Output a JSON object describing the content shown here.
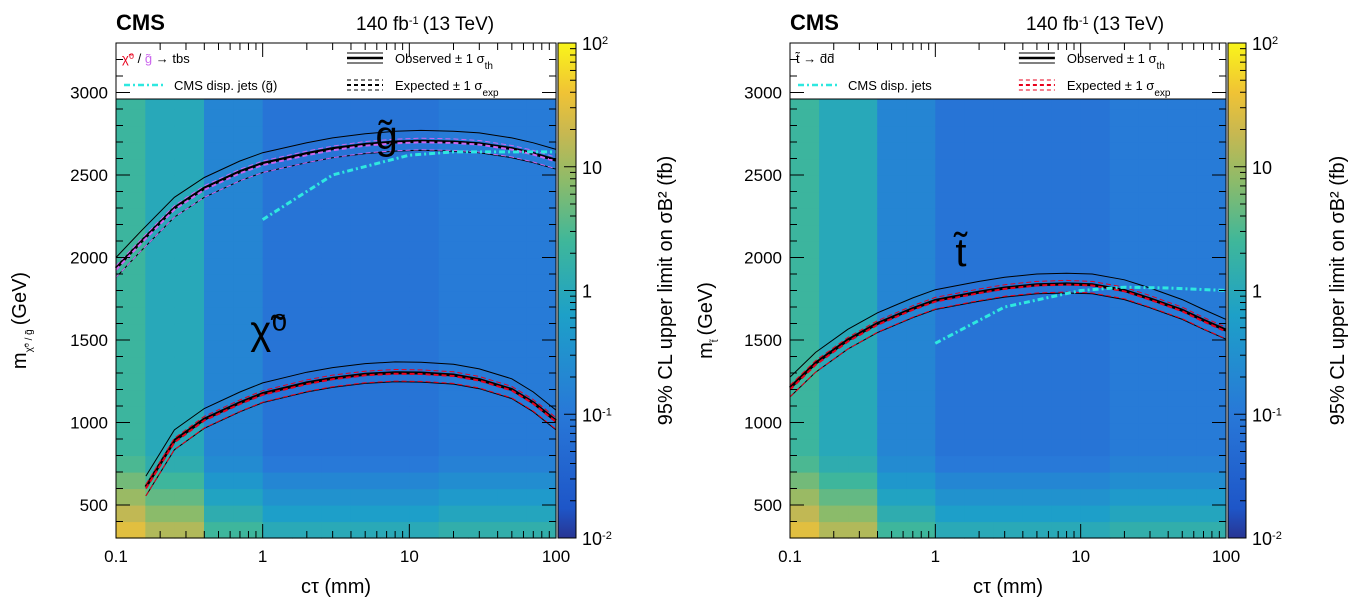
{
  "chart_data": [
    {
      "type": "heatmap",
      "experiment": "CMS",
      "luminosity": "140 fb",
      "luminosity_exp": "-1",
      "energy": "(13 TeV)",
      "xlabel": "cτ (mm)",
      "xscale": "log",
      "xlim": [
        0.1,
        100
      ],
      "xticks": [
        "0.1",
        "1",
        "10",
        "100"
      ],
      "ylabel": "m",
      "ylabel_sub": "χ̃⁰ / g̃",
      "ylabel_unit": "(GeV)",
      "ylim": [
        300,
        3300
      ],
      "yticks": [
        500,
        1000,
        1500,
        2000,
        2500,
        3000
      ],
      "zlabel": "95% CL upper limit on σB² (fb)",
      "zscale": "log",
      "zlim": [
        0.01,
        100
      ],
      "zticks": [
        {
          "base": "10",
          "exp": "-2",
          "v": 0.01
        },
        {
          "base": "10",
          "exp": "-1",
          "v": 0.1
        },
        {
          "base": "1",
          "exp": "",
          "v": 1
        },
        {
          "base": "10",
          "exp": "",
          "v": 10
        },
        {
          "base": "10",
          "exp": "2",
          "v": 100
        }
      ],
      "legend": {
        "process_parts": [
          {
            "text": "χ̃⁰",
            "color": "#e8001c"
          },
          {
            "text": " / ",
            "color": "#000000"
          },
          {
            "text": "g̃",
            "color": "#cc66ee"
          },
          {
            "text": " → tbs",
            "color": "#000000"
          }
        ],
        "observed": "Observed ± 1 σ",
        "observed_sub": "th",
        "expected": "Expected ± 1 σ",
        "expected_sub": "exp",
        "other": "CMS disp. jets (g̃)",
        "expected_color": "#000000"
      },
      "curve_labels": [
        {
          "text": "g̃",
          "color": "#cc66ee",
          "x": 7,
          "y": 2660
        },
        {
          "text": "χ̃⁰",
          "color": "#e8001c",
          "x": 1.1,
          "y": 1480
        }
      ],
      "series": [
        {
          "name": "g̃ observed",
          "style": "observed",
          "x": [
            0.1,
            0.15,
            0.25,
            0.4,
            0.7,
            1,
            2,
            3,
            5,
            8,
            12,
            20,
            30,
            50,
            70,
            100
          ],
          "y": [
            1935,
            2100,
            2300,
            2420,
            2520,
            2570,
            2630,
            2660,
            2685,
            2700,
            2705,
            2700,
            2690,
            2660,
            2630,
            2590
          ]
        },
        {
          "name": "g̃ expected",
          "style": "expected",
          "color": "#cc66ee",
          "x": [
            0.1,
            0.15,
            0.25,
            0.4,
            0.7,
            1,
            2,
            3,
            5,
            8,
            12,
            20,
            30,
            50,
            70,
            100
          ],
          "y": [
            1925,
            2090,
            2290,
            2410,
            2510,
            2560,
            2620,
            2650,
            2678,
            2692,
            2698,
            2694,
            2684,
            2654,
            2624,
            2582
          ]
        },
        {
          "name": "g̃ CMS disp. jets",
          "style": "other",
          "x": [
            1,
            3,
            10,
            20,
            40,
            100
          ],
          "y": [
            2230,
            2500,
            2620,
            2640,
            2640,
            2640
          ]
        },
        {
          "name": "χ̃⁰ observed",
          "style": "observed",
          "x": [
            0.16,
            0.25,
            0.4,
            0.7,
            1,
            2,
            3,
            5,
            8,
            12,
            20,
            30,
            50,
            70,
            100
          ],
          "y": [
            610,
            890,
            1020,
            1120,
            1175,
            1240,
            1268,
            1292,
            1302,
            1300,
            1288,
            1260,
            1200,
            1120,
            1010
          ]
        },
        {
          "name": "χ̃⁰ expected",
          "style": "expected",
          "color": "#e8001c",
          "x": [
            0.16,
            0.25,
            0.4,
            0.7,
            1,
            2,
            3,
            5,
            8,
            12,
            20,
            30,
            50,
            70,
            100
          ],
          "y": [
            600,
            880,
            1012,
            1112,
            1168,
            1233,
            1262,
            1286,
            1296,
            1294,
            1282,
            1254,
            1194,
            1114,
            1004
          ]
        }
      ]
    },
    {
      "type": "heatmap",
      "experiment": "CMS",
      "luminosity": "140 fb",
      "luminosity_exp": "-1",
      "energy": "(13 TeV)",
      "xlabel": "cτ (mm)",
      "xscale": "log",
      "xlim": [
        0.1,
        100
      ],
      "xticks": [
        "0.1",
        "1",
        "10",
        "100"
      ],
      "ylabel": "m",
      "ylabel_sub": "t̃",
      "ylabel_unit": "(GeV)",
      "ylim": [
        300,
        3300
      ],
      "yticks": [
        500,
        1000,
        1500,
        2000,
        2500,
        3000
      ],
      "zlabel": "95% CL upper limit on σB² (fb)",
      "zscale": "log",
      "zlim": [
        0.01,
        100
      ],
      "zticks": [
        {
          "base": "10",
          "exp": "-2",
          "v": 0.01
        },
        {
          "base": "10",
          "exp": "-1",
          "v": 0.1
        },
        {
          "base": "1",
          "exp": "",
          "v": 1
        },
        {
          "base": "10",
          "exp": "",
          "v": 10
        },
        {
          "base": "10",
          "exp": "2",
          "v": 100
        }
      ],
      "legend": {
        "process_parts": [
          {
            "text": "t̃ → d̄d̄",
            "color": "#000000"
          }
        ],
        "observed": "Observed ± 1 σ",
        "observed_sub": "th",
        "expected": "Expected ± 1 σ",
        "expected_sub": "exp",
        "other": "CMS disp. jets",
        "expected_color": "#e8001c"
      },
      "curve_labels": [
        {
          "text": "t̃",
          "color": "#e8001c",
          "x": 1.5,
          "y": 1950
        }
      ],
      "series": [
        {
          "name": "t̃ observed",
          "style": "observed",
          "x": [
            0.1,
            0.15,
            0.25,
            0.4,
            0.7,
            1,
            2,
            3,
            5,
            8,
            12,
            20,
            30,
            50,
            70,
            100
          ],
          "y": [
            1210,
            1360,
            1500,
            1600,
            1690,
            1740,
            1790,
            1815,
            1835,
            1840,
            1835,
            1800,
            1750,
            1680,
            1620,
            1560
          ]
        },
        {
          "name": "t̃ expected",
          "style": "expected",
          "color": "#e8001c",
          "x": [
            0.1,
            0.15,
            0.25,
            0.4,
            0.7,
            1,
            2,
            3,
            5,
            8,
            12,
            20,
            30,
            50,
            70,
            100
          ],
          "y": [
            1200,
            1350,
            1490,
            1592,
            1683,
            1733,
            1784,
            1810,
            1830,
            1836,
            1830,
            1795,
            1744,
            1674,
            1612,
            1552
          ]
        },
        {
          "name": "t̃ CMS disp. jets",
          "style": "other",
          "x": [
            1,
            3,
            10,
            20,
            40,
            100
          ],
          "y": [
            1480,
            1700,
            1800,
            1820,
            1815,
            1800
          ]
        }
      ]
    }
  ]
}
